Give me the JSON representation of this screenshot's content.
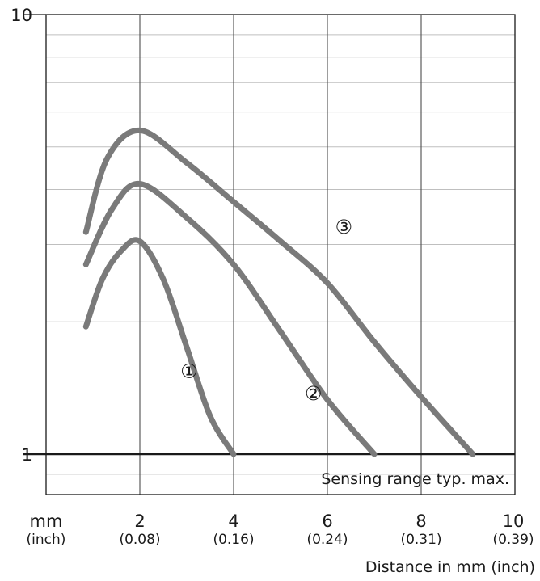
{
  "chart_data": {
    "type": "line",
    "title": "",
    "xlabel": "Distance in mm (inch)",
    "ylabel": "",
    "x_unit_label": "mm",
    "x_unit_label_secondary": "(inch)",
    "xlim": [
      0,
      10
    ],
    "ylim": [
      0.4,
      10
    ],
    "y_scale": "log",
    "grid": true,
    "x_ticks": [
      {
        "value": 2,
        "label": "2",
        "sublabel": "(0.08)"
      },
      {
        "value": 4,
        "label": "4",
        "sublabel": "(0.16)"
      },
      {
        "value": 6,
        "label": "6",
        "sublabel": "(0.24)"
      },
      {
        "value": 8,
        "label": "8",
        "sublabel": "(0.31)"
      },
      {
        "value": 10,
        "label": "10",
        "sublabel": "(0.39)"
      }
    ],
    "y_ticks": [
      {
        "value": 1,
        "label": "1"
      },
      {
        "value": 10,
        "label": "10"
      }
    ],
    "reference_line": {
      "y": 1,
      "label": "Sensing range typ. max."
    },
    "series": [
      {
        "name": "①",
        "points": [
          [
            0.85,
            1.95
          ],
          [
            1.2,
            2.5
          ],
          [
            1.6,
            2.9
          ],
          [
            2.0,
            3.05
          ],
          [
            2.5,
            2.5
          ],
          [
            3.0,
            1.75
          ],
          [
            3.5,
            1.22
          ],
          [
            4.0,
            1.0
          ]
        ]
      },
      {
        "name": "②",
        "points": [
          [
            0.85,
            2.7
          ],
          [
            1.4,
            3.6
          ],
          [
            2.0,
            4.12
          ],
          [
            3.0,
            3.45
          ],
          [
            4.0,
            2.7
          ],
          [
            5.0,
            1.9
          ],
          [
            6.0,
            1.33
          ],
          [
            7.0,
            1.0
          ]
        ]
      },
      {
        "name": "③",
        "points": [
          [
            0.85,
            3.2
          ],
          [
            1.3,
            4.7
          ],
          [
            2.0,
            5.45
          ],
          [
            3.0,
            4.6
          ],
          [
            4.0,
            3.75
          ],
          [
            5.0,
            3.05
          ],
          [
            6.0,
            2.45
          ],
          [
            7.0,
            1.8
          ],
          [
            8.0,
            1.35
          ],
          [
            9.1,
            1.0
          ]
        ]
      }
    ],
    "series_labels": [
      {
        "text": "①",
        "x": 3.05,
        "y": 1.55
      },
      {
        "text": "②",
        "x": 5.7,
        "y": 1.38
      },
      {
        "text": "③",
        "x": 6.35,
        "y": 3.3
      }
    ],
    "colors": {
      "curve": "#7a7a7a",
      "grid": "#bfbfbf",
      "grid_major": "#4d4d4d",
      "axis": "#1a1a1a"
    }
  }
}
